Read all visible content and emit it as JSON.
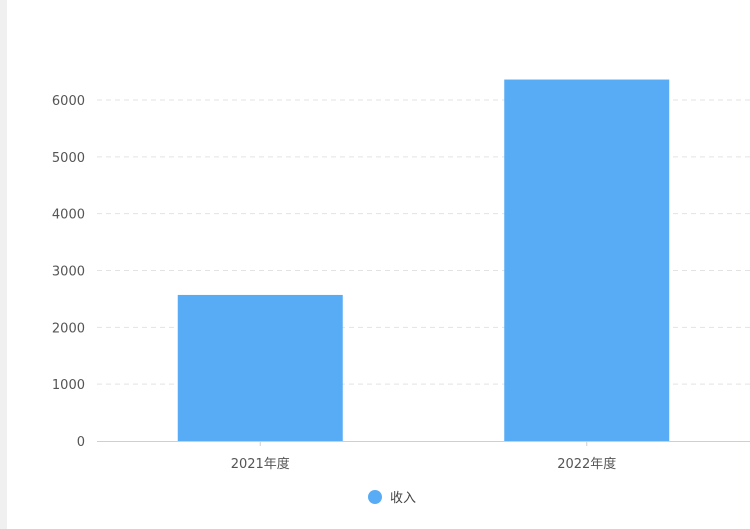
{
  "chart_data": {
    "type": "bar",
    "categories": [
      "2021年度",
      "2022年度"
    ],
    "series": [
      {
        "name": "收入",
        "values": [
          2570,
          6360
        ],
        "color": "#58ACF5"
      }
    ],
    "ylim": [
      0,
      6000
    ],
    "yticks": [
      0,
      1000,
      2000,
      3000,
      4000,
      5000,
      6000
    ],
    "grid": true,
    "legend_position": "bottom-center"
  }
}
